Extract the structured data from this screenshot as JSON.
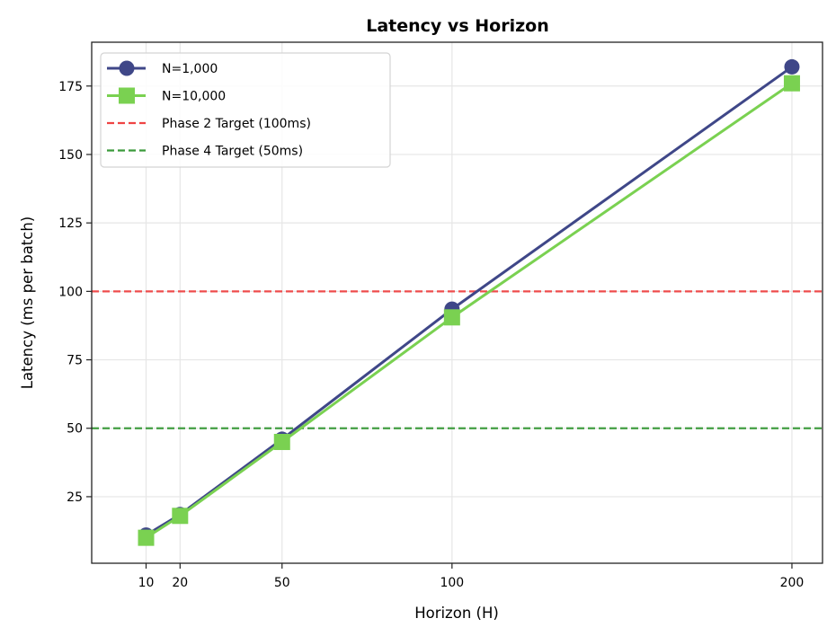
{
  "chart_data": {
    "type": "line",
    "title": "Latency vs Horizon",
    "xlabel": "Horizon (H)",
    "ylabel": "Latency (ms per batch)",
    "x": [
      10,
      20,
      50,
      100,
      200
    ],
    "xticks": [
      10,
      20,
      50,
      100,
      200
    ],
    "yticks": [
      25,
      50,
      75,
      100,
      125,
      150,
      175
    ],
    "xlim": [
      -6,
      209
    ],
    "ylim": [
      0.7,
      191
    ],
    "grid": true,
    "legend_position": "upper left",
    "series": [
      {
        "name": "N=1,000",
        "values": [
          11,
          18.5,
          46,
          93.5,
          182
        ],
        "color": "#3f4788",
        "marker": "circle",
        "linestyle": "solid"
      },
      {
        "name": "N=10,000",
        "values": [
          10,
          18,
          45,
          90.5,
          176
        ],
        "color": "#7ad151",
        "marker": "square",
        "linestyle": "solid"
      }
    ],
    "hlines": [
      {
        "name": "Phase 2 Target (100ms)",
        "y": 100,
        "color": "#ef4444",
        "linestyle": "dashed"
      },
      {
        "name": "Phase 4 Target (50ms)",
        "y": 50,
        "color": "#3a9a3a",
        "linestyle": "dashed"
      }
    ]
  }
}
